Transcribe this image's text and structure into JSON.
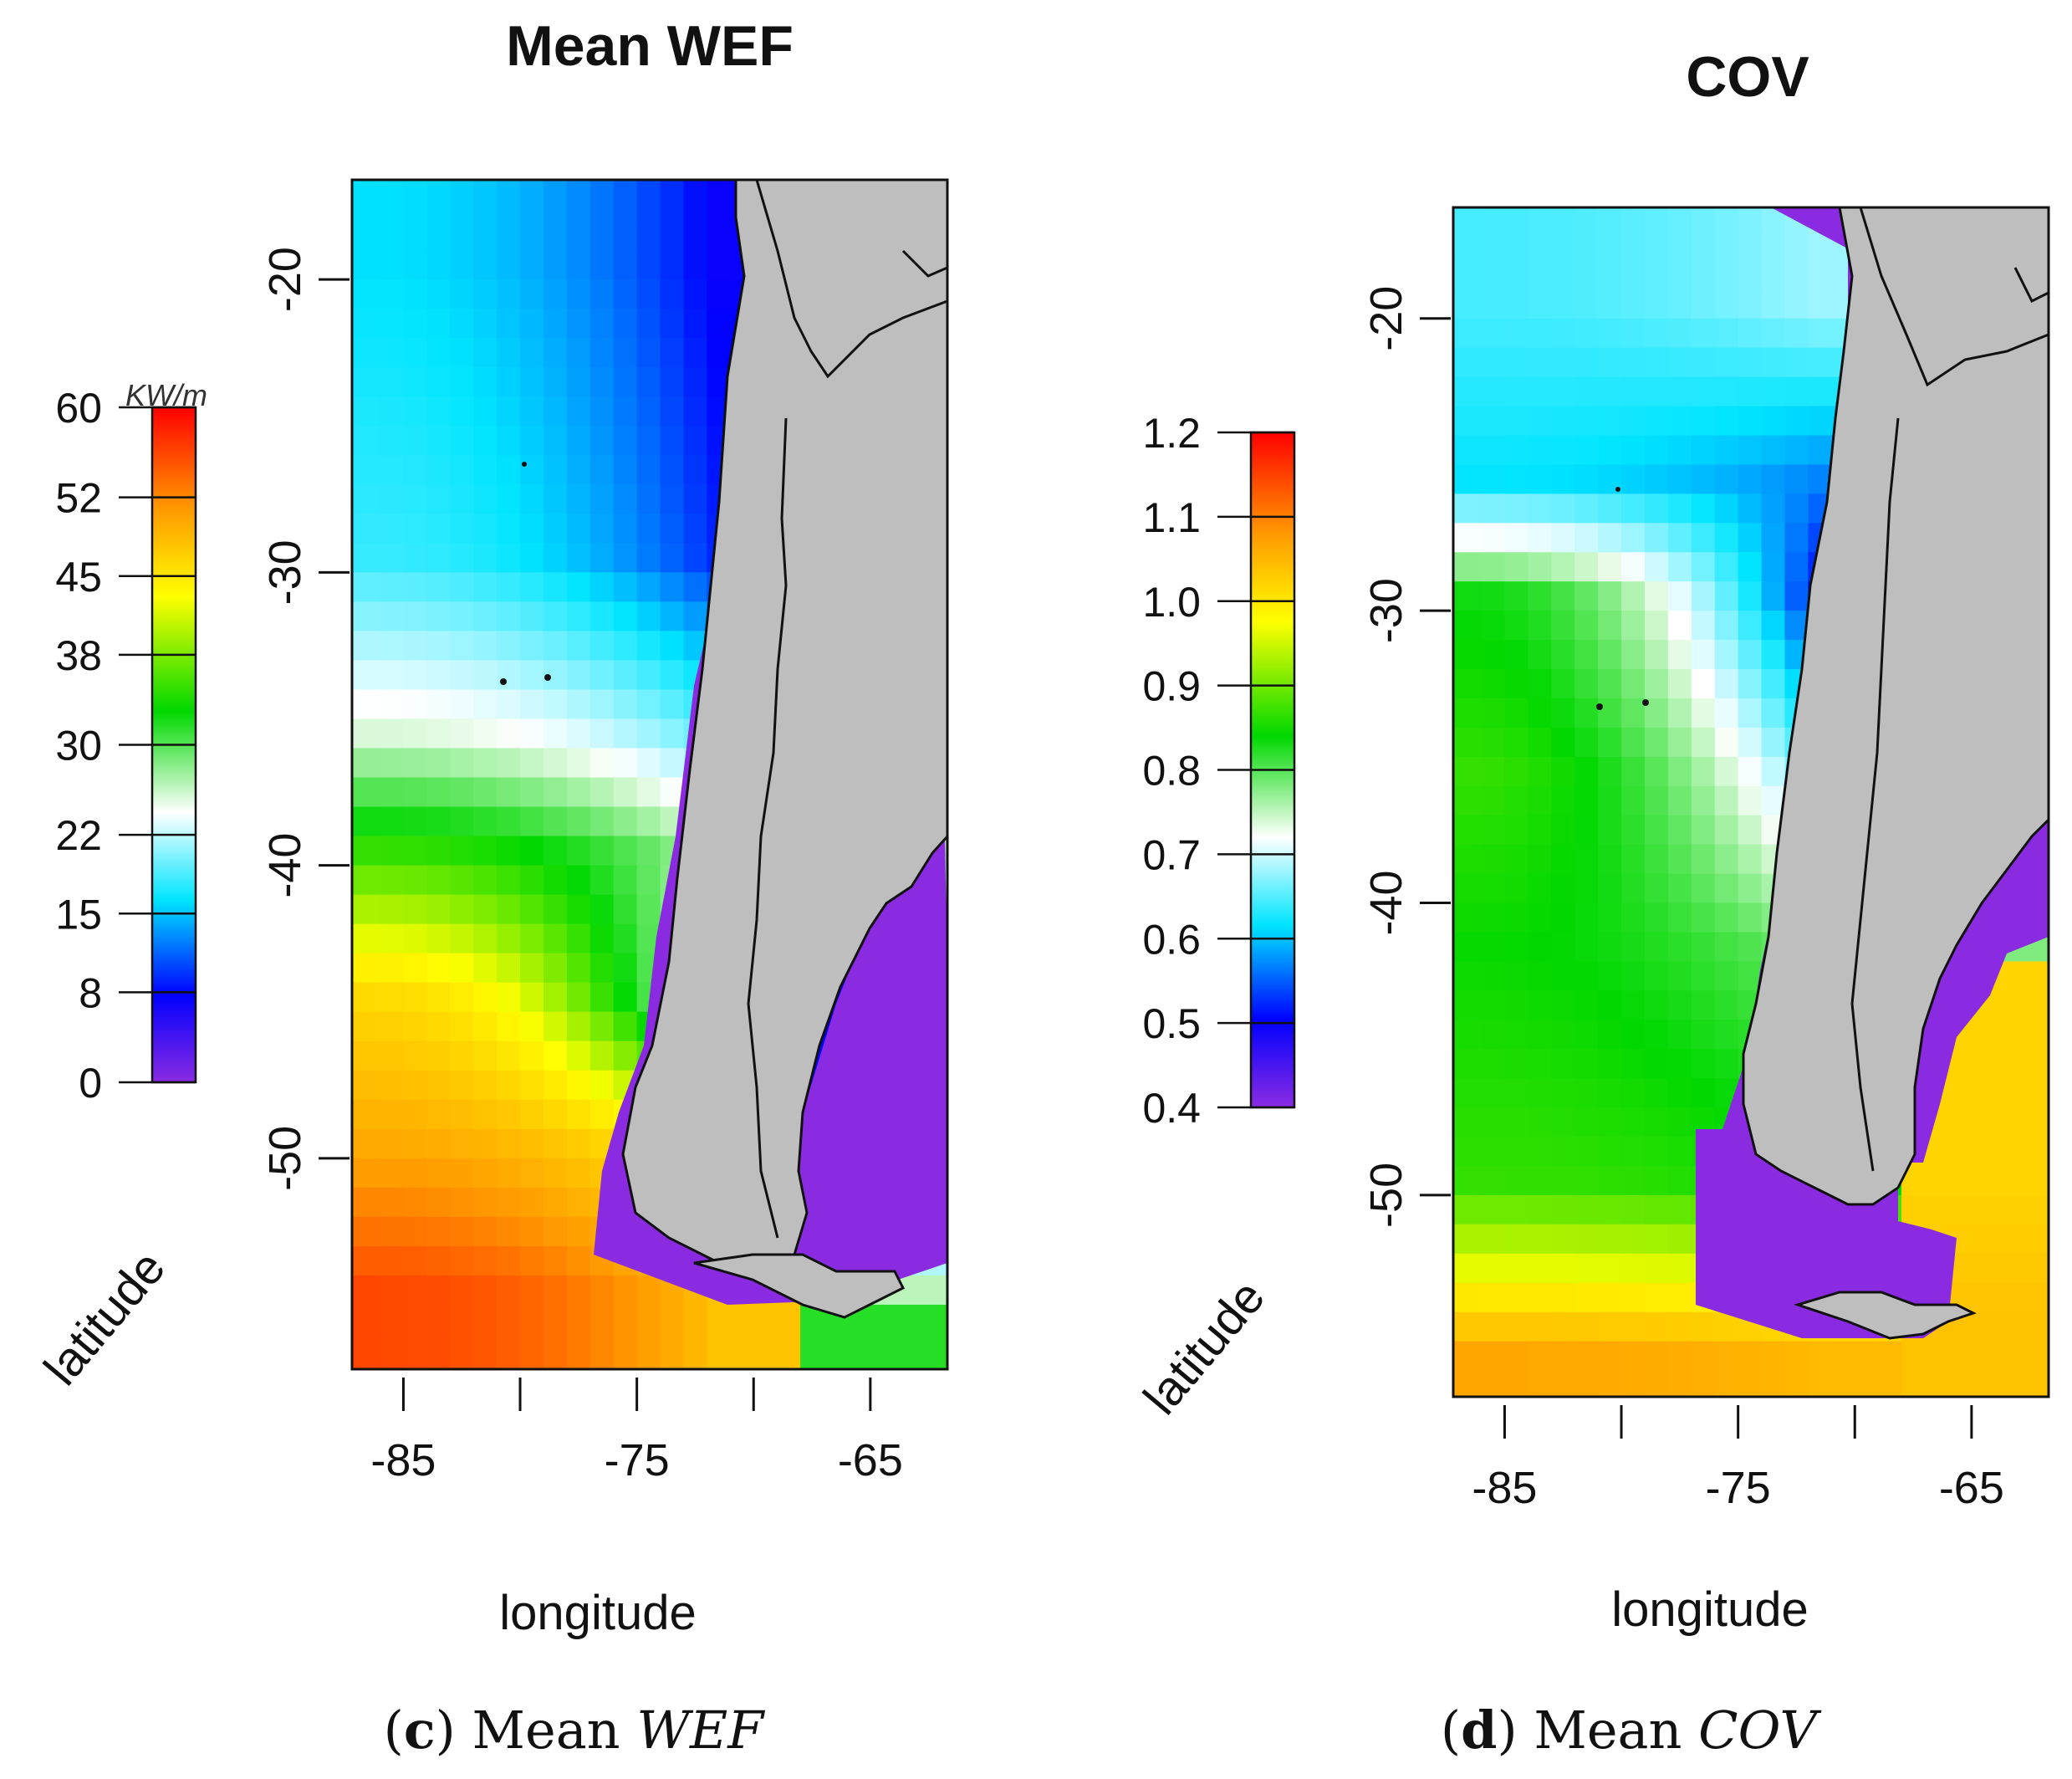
{
  "panels": [
    {
      "id": "c",
      "title": "Mean WEF",
      "xlabel": "longitude",
      "ylabel": "latitude",
      "x_ticks": [
        -85,
        -75,
        -65
      ],
      "y_ticks": [
        -20,
        -30,
        -40,
        -50
      ],
      "colorbar": {
        "unit": "KW/m",
        "ticks": [
          0,
          8,
          15,
          22,
          30,
          38,
          45,
          52,
          60
        ]
      },
      "caption": {
        "letter": "c",
        "text": "Mean ",
        "italic": "WEF"
      }
    },
    {
      "id": "d",
      "title": "COV",
      "xlabel": "longitude",
      "ylabel": "latitude",
      "x_ticks": [
        -85,
        -75,
        -65
      ],
      "y_ticks": [
        -20,
        -30,
        -40,
        -50
      ],
      "colorbar": {
        "unit": "",
        "ticks": [
          0.4,
          0.5,
          0.6,
          0.7,
          0.8,
          0.9,
          1.0,
          1.1,
          1.2
        ]
      },
      "caption": {
        "letter": "d",
        "text": "Mean ",
        "italic": "COV"
      }
    }
  ],
  "chart_data": [
    {
      "type": "heatmap",
      "title": "Mean WEF",
      "xlabel": "longitude",
      "ylabel": "latitude",
      "xlim": [
        -87.2,
        -61.7
      ],
      "ylim": [
        -57.2,
        -16.6
      ],
      "colorscale_range": [
        0,
        60
      ],
      "colorscale_unit": "KW/m",
      "colors": [
        "#8a2be2",
        "#0000ff",
        "#00e5ff",
        "#ffffff",
        "#00d800",
        "#ffff00",
        "#ff9900",
        "#ff0000"
      ],
      "land_color": "#bebebe",
      "approx_values_by_latitude": [
        {
          "lat": -20,
          "west": 17,
          "coast": 8
        },
        {
          "lat": -30,
          "west": 19,
          "coast": 10
        },
        {
          "lat": -36,
          "west": 27,
          "coast": 20
        },
        {
          "lat": -40,
          "west": 36,
          "coast": 28
        },
        {
          "lat": -45,
          "west": 46,
          "coast": 24
        },
        {
          "lat": -50,
          "west": 50,
          "coast": 42
        },
        {
          "lat": -55,
          "west": 56,
          "coast": 48
        }
      ],
      "atlantic_side": [
        {
          "lat": -45,
          "value": 8
        },
        {
          "lat": -50,
          "value": 10
        },
        {
          "lat": -53,
          "value": 18
        },
        {
          "lat": -56,
          "value": 33
        }
      ]
    },
    {
      "type": "heatmap",
      "title": "COV",
      "xlabel": "longitude",
      "ylabel": "latitude",
      "xlim": [
        -87.2,
        -61.7
      ],
      "ylim": [
        -56.9,
        -16.2
      ],
      "colorscale_range": [
        0.4,
        1.2
      ],
      "colors": [
        "#8a2be2",
        "#0000ff",
        "#00e5ff",
        "#ffffff",
        "#00d800",
        "#ffff00",
        "#ff9900",
        "#ff0000"
      ],
      "land_color": "#bebebe",
      "approx_values_by_latitude": [
        {
          "lat": -20,
          "west": 0.66,
          "coast": 0.7
        },
        {
          "lat": -26,
          "west": 0.63,
          "coast": 0.58
        },
        {
          "lat": -30,
          "west": 0.85,
          "coast": 0.52
        },
        {
          "lat": -36,
          "west": 0.88,
          "coast": 0.66
        },
        {
          "lat": -42,
          "west": 0.86,
          "coast": 0.8
        },
        {
          "lat": -50,
          "west": 0.88,
          "coast": 0.86
        },
        {
          "lat": -53,
          "west": 0.96,
          "coast": 0.95
        },
        {
          "lat": -56,
          "west": 1.07,
          "coast": 1.05
        }
      ],
      "atlantic_side": [
        {
          "lat": -45,
          "value": 1.02
        },
        {
          "lat": -50,
          "value": 1.02
        },
        {
          "lat": -55,
          "value": 1.04
        }
      ]
    }
  ]
}
